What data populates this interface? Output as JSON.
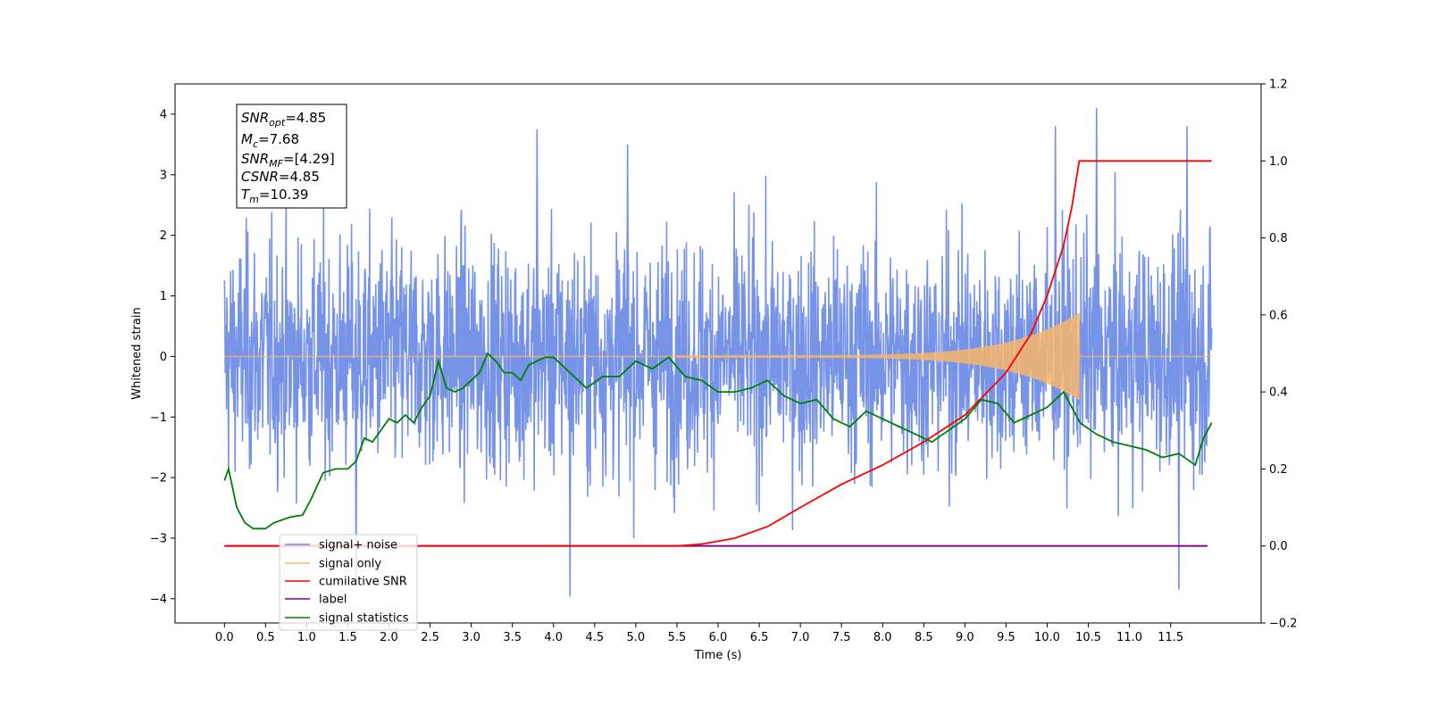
{
  "chart_data": {
    "type": "line",
    "xlabel": "Time (s)",
    "ylabel": "Whitened strain",
    "xlim": [
      -0.6,
      12.6
    ],
    "ylim": [
      -4.4,
      4.5
    ],
    "y2lim": [
      -0.2,
      1.2
    ],
    "x_ticks": [
      "0.0",
      "0.5",
      "1.0",
      "1.5",
      "2.0",
      "2.5",
      "3.0",
      "3.5",
      "4.0",
      "4.5",
      "5.0",
      "5.5",
      "6.0",
      "6.5",
      "7.0",
      "7.5",
      "8.0",
      "8.5",
      "9.0",
      "9.5",
      "10.0",
      "10.5",
      "11.0",
      "11.5"
    ],
    "y_ticks": [
      "4",
      "3",
      "2",
      "1",
      "0",
      "−1",
      "−2",
      "−3",
      "−4"
    ],
    "y2_ticks": [
      "1.2",
      "1.0",
      "0.8",
      "0.6",
      "0.4",
      "0.2",
      "0.0",
      "−0.2"
    ],
    "grid": false,
    "legend_position": "lower-left",
    "annotation": {
      "lines": [
        {
          "sym": "SNR",
          "sub": "opt",
          "text": "=4.85"
        },
        {
          "sym": "M",
          "sub": "c",
          "text": "=7.68"
        },
        {
          "sym": "SNR",
          "sub": "MF",
          "text": "=[4.29]"
        },
        {
          "sym": "CSNR",
          "sub": "",
          "text": "=4.85"
        },
        {
          "sym": "T",
          "sub": "m",
          "text": "=10.39"
        }
      ]
    },
    "series": [
      {
        "name": "signal+ noise",
        "color": "#6f8de6",
        "axis": "left",
        "x_range": [
          0.0,
          12.0
        ],
        "typical_amplitude": 1.3,
        "max": 4.15,
        "min": -3.97,
        "note_peaks": [
          [
            3.8,
            3.75
          ],
          [
            4.9,
            3.5
          ],
          [
            10.1,
            3.8
          ],
          [
            10.6,
            4.1
          ],
          [
            11.7,
            3.8
          ],
          [
            4.2,
            -3.97
          ],
          [
            11.6,
            -3.85
          ],
          [
            1.6,
            -3.7
          ]
        ]
      },
      {
        "name": "signal only",
        "color": "#f7b56b",
        "axis": "left",
        "x_range": [
          0.0,
          12.0
        ],
        "chirp_start": 5.5,
        "chirp_end": 10.39,
        "max_amplitude": 0.7
      },
      {
        "name": "cumilative SNR",
        "color": "#ff0000",
        "axis": "right",
        "x": [
          0.0,
          5.5,
          5.8,
          6.2,
          6.6,
          7.0,
          7.5,
          8.0,
          8.5,
          9.0,
          9.5,
          9.8,
          10.0,
          10.2,
          10.3,
          10.39,
          11.0,
          12.0
        ],
        "y": [
          0.0,
          0.0,
          0.005,
          0.02,
          0.05,
          0.1,
          0.16,
          0.21,
          0.27,
          0.34,
          0.45,
          0.55,
          0.65,
          0.78,
          0.88,
          1.0,
          1.0,
          1.0
        ]
      },
      {
        "name": "label",
        "color": "#800080",
        "axis": "right",
        "x": [
          0.0,
          11.95
        ],
        "y": [
          0.0,
          0.0
        ]
      },
      {
        "name": "signal statistics",
        "color": "#008000",
        "axis": "right",
        "x": [
          0.0,
          0.05,
          0.15,
          0.25,
          0.35,
          0.5,
          0.6,
          0.8,
          0.95,
          1.05,
          1.2,
          1.35,
          1.5,
          1.6,
          1.7,
          1.8,
          1.9,
          2.0,
          2.1,
          2.2,
          2.3,
          2.4,
          2.5,
          2.6,
          2.7,
          2.8,
          2.9,
          3.0,
          3.1,
          3.2,
          3.3,
          3.4,
          3.5,
          3.6,
          3.7,
          3.8,
          3.9,
          4.0,
          4.2,
          4.4,
          4.6,
          4.8,
          5.0,
          5.2,
          5.4,
          5.6,
          5.8,
          6.0,
          6.2,
          6.4,
          6.6,
          6.8,
          7.0,
          7.2,
          7.4,
          7.6,
          7.8,
          8.0,
          8.2,
          8.4,
          8.6,
          8.8,
          9.0,
          9.2,
          9.4,
          9.6,
          9.8,
          10.0,
          10.2,
          10.4,
          10.6,
          10.8,
          11.0,
          11.2,
          11.4,
          11.6,
          11.8,
          11.9,
          12.0
        ],
        "y": [
          0.17,
          0.2,
          0.1,
          0.06,
          0.045,
          0.045,
          0.06,
          0.075,
          0.08,
          0.12,
          0.19,
          0.2,
          0.2,
          0.22,
          0.28,
          0.27,
          0.3,
          0.33,
          0.32,
          0.34,
          0.32,
          0.36,
          0.39,
          0.48,
          0.41,
          0.4,
          0.41,
          0.43,
          0.45,
          0.5,
          0.48,
          0.45,
          0.45,
          0.43,
          0.47,
          0.48,
          0.49,
          0.49,
          0.45,
          0.41,
          0.44,
          0.44,
          0.48,
          0.46,
          0.49,
          0.44,
          0.43,
          0.4,
          0.4,
          0.41,
          0.43,
          0.39,
          0.37,
          0.38,
          0.33,
          0.31,
          0.35,
          0.33,
          0.31,
          0.29,
          0.27,
          0.3,
          0.33,
          0.38,
          0.37,
          0.32,
          0.34,
          0.36,
          0.4,
          0.32,
          0.29,
          0.27,
          0.26,
          0.25,
          0.23,
          0.24,
          0.21,
          0.28,
          0.32
        ]
      }
    ]
  }
}
